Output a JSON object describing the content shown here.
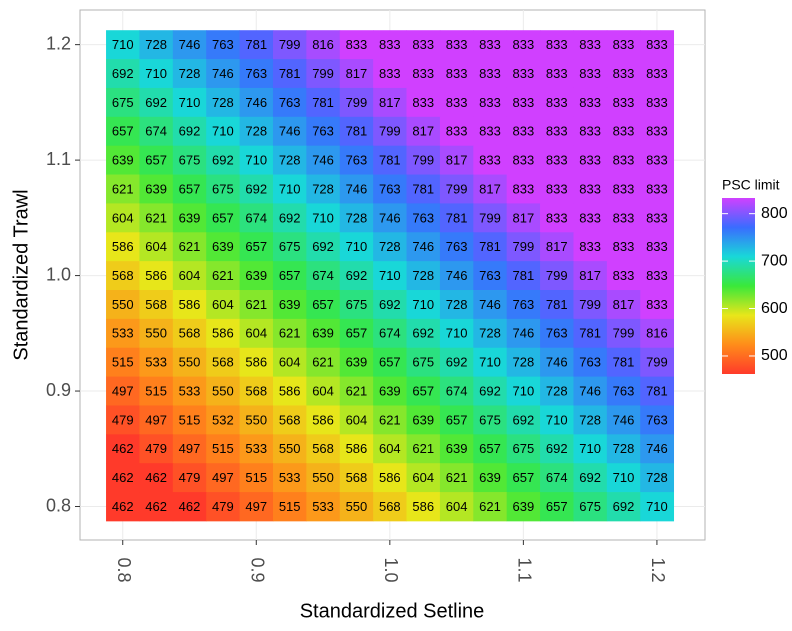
{
  "chart_data": {
    "type": "heatmap",
    "x_label": "Standardized Setline",
    "y_label": "Standardized Trawl",
    "legend_title": "PSC limit",
    "x": [
      0.8,
      0.825,
      0.85,
      0.875,
      0.9,
      0.925,
      0.95,
      0.975,
      1.0,
      1.025,
      1.05,
      1.075,
      1.1,
      1.125,
      1.15,
      1.175,
      1.2
    ],
    "y": [
      1.2,
      1.175,
      1.15,
      1.125,
      1.1,
      1.075,
      1.05,
      1.025,
      1.0,
      0.975,
      0.95,
      0.925,
      0.9,
      0.875,
      0.85,
      0.825,
      0.8
    ],
    "values": [
      [
        710,
        728,
        746,
        763,
        781,
        799,
        816,
        833,
        833,
        833,
        833,
        833,
        833,
        833,
        833,
        833,
        833
      ],
      [
        692,
        710,
        728,
        746,
        763,
        781,
        799,
        817,
        833,
        833,
        833,
        833,
        833,
        833,
        833,
        833,
        833
      ],
      [
        675,
        692,
        710,
        728,
        746,
        763,
        781,
        799,
        817,
        833,
        833,
        833,
        833,
        833,
        833,
        833,
        833
      ],
      [
        657,
        674,
        692,
        710,
        728,
        746,
        763,
        781,
        799,
        817,
        833,
        833,
        833,
        833,
        833,
        833,
        833
      ],
      [
        639,
        657,
        675,
        692,
        710,
        728,
        746,
        763,
        781,
        799,
        817,
        833,
        833,
        833,
        833,
        833,
        833
      ],
      [
        621,
        639,
        657,
        675,
        692,
        710,
        728,
        746,
        763,
        781,
        799,
        817,
        833,
        833,
        833,
        833,
        833
      ],
      [
        604,
        621,
        639,
        657,
        674,
        692,
        710,
        728,
        746,
        763,
        781,
        799,
        817,
        833,
        833,
        833,
        833
      ],
      [
        586,
        604,
        621,
        639,
        657,
        675,
        692,
        710,
        728,
        746,
        763,
        781,
        799,
        817,
        833,
        833,
        833
      ],
      [
        568,
        586,
        604,
        621,
        639,
        657,
        674,
        692,
        710,
        728,
        746,
        763,
        781,
        799,
        817,
        833,
        833
      ],
      [
        550,
        568,
        586,
        604,
        621,
        639,
        657,
        675,
        692,
        710,
        728,
        746,
        763,
        781,
        799,
        817,
        833
      ],
      [
        533,
        550,
        568,
        586,
        604,
        621,
        639,
        657,
        674,
        692,
        710,
        728,
        746,
        763,
        781,
        799,
        816
      ],
      [
        515,
        533,
        550,
        568,
        586,
        604,
        621,
        639,
        657,
        675,
        692,
        710,
        728,
        746,
        763,
        781,
        799
      ],
      [
        497,
        515,
        533,
        550,
        568,
        586,
        604,
        621,
        639,
        657,
        674,
        692,
        710,
        728,
        746,
        763,
        781
      ],
      [
        479,
        497,
        515,
        532,
        550,
        568,
        586,
        604,
        621,
        639,
        657,
        675,
        692,
        710,
        728,
        746,
        763
      ],
      [
        462,
        479,
        497,
        515,
        533,
        550,
        568,
        586,
        604,
        621,
        639,
        657,
        675,
        692,
        710,
        728,
        746
      ],
      [
        462,
        462,
        479,
        497,
        515,
        533,
        550,
        568,
        586,
        604,
        621,
        639,
        657,
        674,
        692,
        710,
        728
      ],
      [
        462,
        462,
        462,
        479,
        497,
        515,
        533,
        550,
        568,
        586,
        604,
        621,
        639,
        657,
        675,
        692,
        710
      ]
    ],
    "xlim": [
      0.768,
      1.236
    ],
    "ylim": [
      0.771,
      1.23
    ],
    "xticks": [
      0.8,
      0.9,
      {
        "value": 1.0,
        "label": "1.0"
      },
      1.1,
      1.2
    ],
    "yticks": [
      0.8,
      0.9,
      {
        "value": 1.0,
        "label": "1.0"
      },
      1.1,
      1.2
    ],
    "zlim": [
      462,
      833
    ],
    "colorbar_ticks": [
      500,
      600,
      700,
      800
    ],
    "colors": [
      "#ff3a2a",
      "#ff8c1a",
      "#e8e61a",
      "#3ae83a",
      "#19d8d8",
      "#3a6cff",
      "#d040ff"
    ],
    "grid": true
  }
}
